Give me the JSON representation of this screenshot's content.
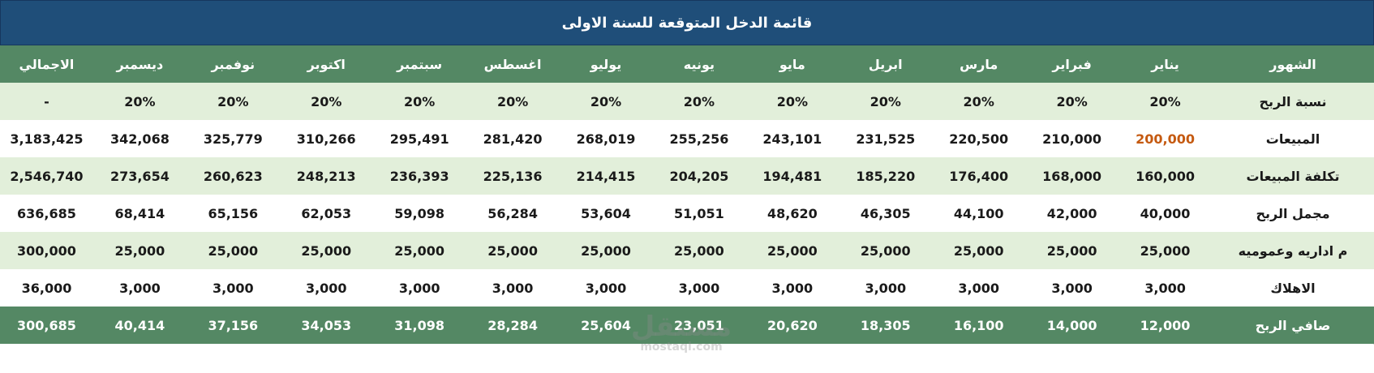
{
  "title": "قائمة الدخل المتوقعة للسنة الاولى",
  "header": {
    "label": "الشهور",
    "months": [
      "يناير",
      "فبراير",
      "مارس",
      "ابريل",
      "مايو",
      "يونيه",
      "يوليو",
      "اغسطس",
      "سبتمبر",
      "اكتوبر",
      "نوفمبر",
      "ديسمبر",
      "الاجمالي"
    ]
  },
  "rows": [
    {
      "label": "نسبة الربح",
      "values": [
        "20%",
        "20%",
        "20%",
        "20%",
        "20%",
        "20%",
        "20%",
        "20%",
        "20%",
        "20%",
        "20%",
        "20%",
        "-"
      ]
    },
    {
      "label": "المبيعات",
      "values": [
        "200,000",
        "210,000",
        "220,500",
        "231,525",
        "243,101",
        "255,256",
        "268,019",
        "281,420",
        "295,491",
        "310,266",
        "325,779",
        "342,068",
        "3,183,425"
      ]
    },
    {
      "label": "تكلفة المبيعات",
      "values": [
        "160,000",
        "168,000",
        "176,400",
        "185,220",
        "194,481",
        "204,205",
        "214,415",
        "225,136",
        "236,393",
        "248,213",
        "260,623",
        "273,654",
        "2,546,740"
      ]
    },
    {
      "label": "مجمل الربح",
      "values": [
        "40,000",
        "42,000",
        "44,100",
        "46,305",
        "48,620",
        "51,051",
        "53,604",
        "56,284",
        "59,098",
        "62,053",
        "65,156",
        "68,414",
        "636,685"
      ]
    },
    {
      "label": "م اداريه وعموميه",
      "values": [
        "25,000",
        "25,000",
        "25,000",
        "25,000",
        "25,000",
        "25,000",
        "25,000",
        "25,000",
        "25,000",
        "25,000",
        "25,000",
        "25,000",
        "300,000"
      ]
    },
    {
      "label": "الاهلاك",
      "values": [
        "3,000",
        "3,000",
        "3,000",
        "3,000",
        "3,000",
        "3,000",
        "3,000",
        "3,000",
        "3,000",
        "3,000",
        "3,000",
        "3,000",
        "36,000"
      ]
    }
  ],
  "footer": {
    "label": "صافي الربح",
    "values": [
      "12,000",
      "14,000",
      "16,100",
      "18,305",
      "20,620",
      "23,051",
      "25,604",
      "28,284",
      "31,098",
      "34,053",
      "37,156",
      "40,414",
      "300,685"
    ]
  },
  "watermark": {
    "main": "مستقل",
    "sub": "mostaql.com"
  },
  "colors": {
    "title_bg": "#1f4e79",
    "header_bg": "#548864",
    "band_light": "#e2efda",
    "highlight_text": "#c55a11"
  }
}
